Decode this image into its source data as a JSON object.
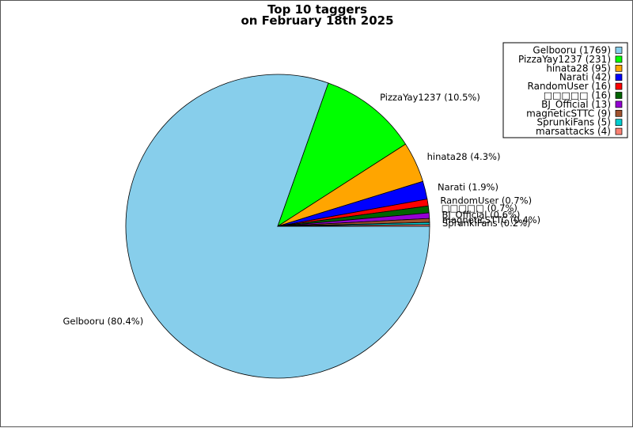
{
  "chart_data": {
    "type": "pie",
    "title_lines": [
      "Top 10 taggers",
      "on February 18th 2025"
    ],
    "legend_position": "top-right",
    "series": [
      {
        "name": "Gelbooru",
        "value": 1769,
        "legend": "Gelbooru (1769)",
        "pct_label": "Gelbooru (80.4%)",
        "color": "#87ceeb"
      },
      {
        "name": "PizzaYay1237",
        "value": 231,
        "legend": "PizzaYay1237 (231)",
        "pct_label": "PizzaYay1237 (10.5%)",
        "color": "#00ff00"
      },
      {
        "name": "hinata28",
        "value": 95,
        "legend": "hinata28 (95)",
        "pct_label": "hinata28 (4.3%)",
        "color": "#ffa500"
      },
      {
        "name": "Narati",
        "value": 42,
        "legend": "Narati (42)",
        "pct_label": "Narati (1.9%)",
        "color": "#0000ff"
      },
      {
        "name": "RandomUser",
        "value": 16,
        "legend": "RandomUser (16)",
        "pct_label": "RandomUser (0.7%)",
        "color": "#ff0000"
      },
      {
        "name": "□□□□□",
        "value": 16,
        "legend": "□□□□□ (16)",
        "pct_label": "□□□□□ (0.7%)",
        "color": "#006400"
      },
      {
        "name": "BJ_Official",
        "value": 13,
        "legend": "BJ_Official (13)",
        "pct_label": "BJ_Official (0.6%)",
        "color": "#9400d3"
      },
      {
        "name": "magneticSTTC",
        "value": 9,
        "legend": "magneticSTTC (9)",
        "pct_label": "magneticSTTC (0.4%)",
        "color": "#a0522d"
      },
      {
        "name": "SprunkiFans",
        "value": 5,
        "legend": "SprunkiFans (5)",
        "pct_label": "SprunkiFans (0.2%)",
        "color": "#00ced1"
      },
      {
        "name": "marsattacks",
        "value": 4,
        "legend": "marsattacks (4)",
        "pct_label": "",
        "color": "#fa8072"
      }
    ]
  }
}
